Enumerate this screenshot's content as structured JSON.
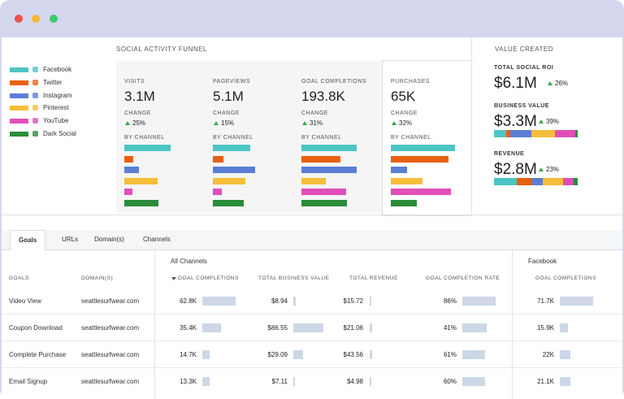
{
  "legend": [
    {
      "name": "Facebook",
      "color": "#4dc5c5"
    },
    {
      "name": "Twitter",
      "color": "#e8600f"
    },
    {
      "name": "Instagram",
      "color": "#5b7fd6"
    },
    {
      "name": "Pinterest",
      "color": "#f6bd3a"
    },
    {
      "name": "YouTube",
      "color": "#e04fb8"
    },
    {
      "name": "Dark Social",
      "color": "#2a8c3a"
    }
  ],
  "funnel": {
    "title": "SOCIAL ACTIVITY FUNNEL",
    "columns": [
      {
        "label": "VISITS",
        "value": "3.1M",
        "change_label": "CHANGE",
        "change": "25%",
        "by_channel_label": "BY CHANNEL",
        "channel_bars": [
          57,
          11,
          18,
          41,
          10,
          42
        ]
      },
      {
        "label": "PAGEVIEWS",
        "value": "5.1M",
        "change_label": "CHANGE",
        "change": "15%",
        "by_channel_label": "BY CHANNEL",
        "channel_bars": [
          46,
          13,
          52,
          40,
          11,
          38
        ]
      },
      {
        "label": "GOAL COMPLETIONS",
        "value": "193.8K",
        "change_label": "CHANGE",
        "change": "31%",
        "by_channel_label": "BY CHANNEL",
        "channel_bars": [
          68,
          48,
          68,
          30,
          55,
          56
        ]
      },
      {
        "label": "PURCHASES",
        "value": "65K",
        "change_label": "CHANGE",
        "change": "32%",
        "by_channel_label": "BY CHANNEL",
        "channel_bars": [
          79,
          71,
          20,
          39,
          74,
          32
        ]
      }
    ]
  },
  "value_created": {
    "title": "VALUE CREATED",
    "items": [
      {
        "label": "TOTAL SOCIAL ROI",
        "value": "$6.1M",
        "change": "26%"
      },
      {
        "label": "BUSINESS VALUE",
        "value": "$3.3M",
        "change": "39%",
        "segments": [
          15,
          5,
          26,
          29,
          25,
          3
        ]
      },
      {
        "label": "REVENUE",
        "value": "$2.8M",
        "change": "23%",
        "segments": [
          28,
          19,
          13,
          25,
          13,
          5
        ]
      }
    ]
  },
  "tabs": [
    "Goals",
    "URLs",
    "Domain(s)",
    "Channels"
  ],
  "table": {
    "groups": [
      "All Channels",
      "Facebook"
    ],
    "headers": [
      "GOALS",
      "DOMAIN(S)",
      "GOAL COMPLETIONS",
      "TOTAL BUSINESS VALUE",
      "TOTAL REVENUE",
      "GOAL COMPLETION RATE",
      "GOAL COMPLETIONS"
    ],
    "rows": [
      {
        "cells": [
          "Video View",
          "seattlesurfwear.com",
          "62.8K",
          "$8.94",
          "$15.72",
          "86%",
          "71.7K"
        ],
        "bars": [
          41,
          3,
          2,
          41,
          41
        ]
      },
      {
        "cells": [
          "Coupon Download",
          "seattlesurfwear.com",
          "35.4K",
          "$86.55",
          "$21.06",
          "41%",
          "15.9K"
        ],
        "bars": [
          23,
          37,
          3,
          30,
          10
        ]
      },
      {
        "cells": [
          "Complete Purchase",
          "seattlesurfwear.com",
          "14.7K",
          "$29.09",
          "$43.56",
          "61%",
          "22K"
        ],
        "bars": [
          9,
          12,
          3,
          28,
          13
        ]
      },
      {
        "cells": [
          "Email Signup",
          "seattlesurfwear.com",
          "13.3K",
          "$7.11",
          "$4.98",
          "60%",
          "21.1K"
        ],
        "bars": [
          9,
          2,
          2,
          28,
          13
        ]
      }
    ]
  }
}
